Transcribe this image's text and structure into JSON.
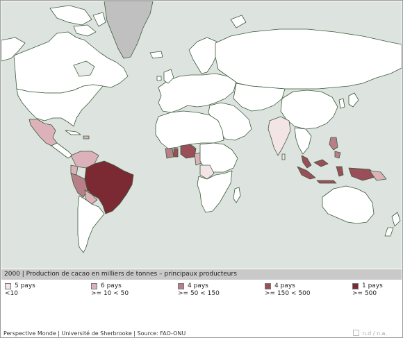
{
  "title": "2000 | Production de cacao en milliers de tonnes – principaux producteurs",
  "legend": [
    {
      "count": "5 pays",
      "range": "<10",
      "color": "#f3e4e6"
    },
    {
      "count": "6 pays",
      "range": ">= 10 < 50",
      "color": "#dcb1b9"
    },
    {
      "count": "4 pays",
      "range": ">= 50 < 150",
      "color": "#b97f88"
    },
    {
      "count": "4 pays",
      "range": ">= 150 < 500",
      "color": "#9a4f58"
    },
    {
      "count": "1 pays",
      "range": ">= 500",
      "color": "#7b2a33"
    }
  ],
  "footer": "Perspective Monde | Université de Sherbrooke | Source: FAO-ONU",
  "nd_label": "n.d / n.a.",
  "colors": {
    "ocean": "#dde3de",
    "land": "#ffffff",
    "greenland": "#c0c0c0",
    "nd": "#e8ece8",
    "border": "#3b5a3b"
  }
}
